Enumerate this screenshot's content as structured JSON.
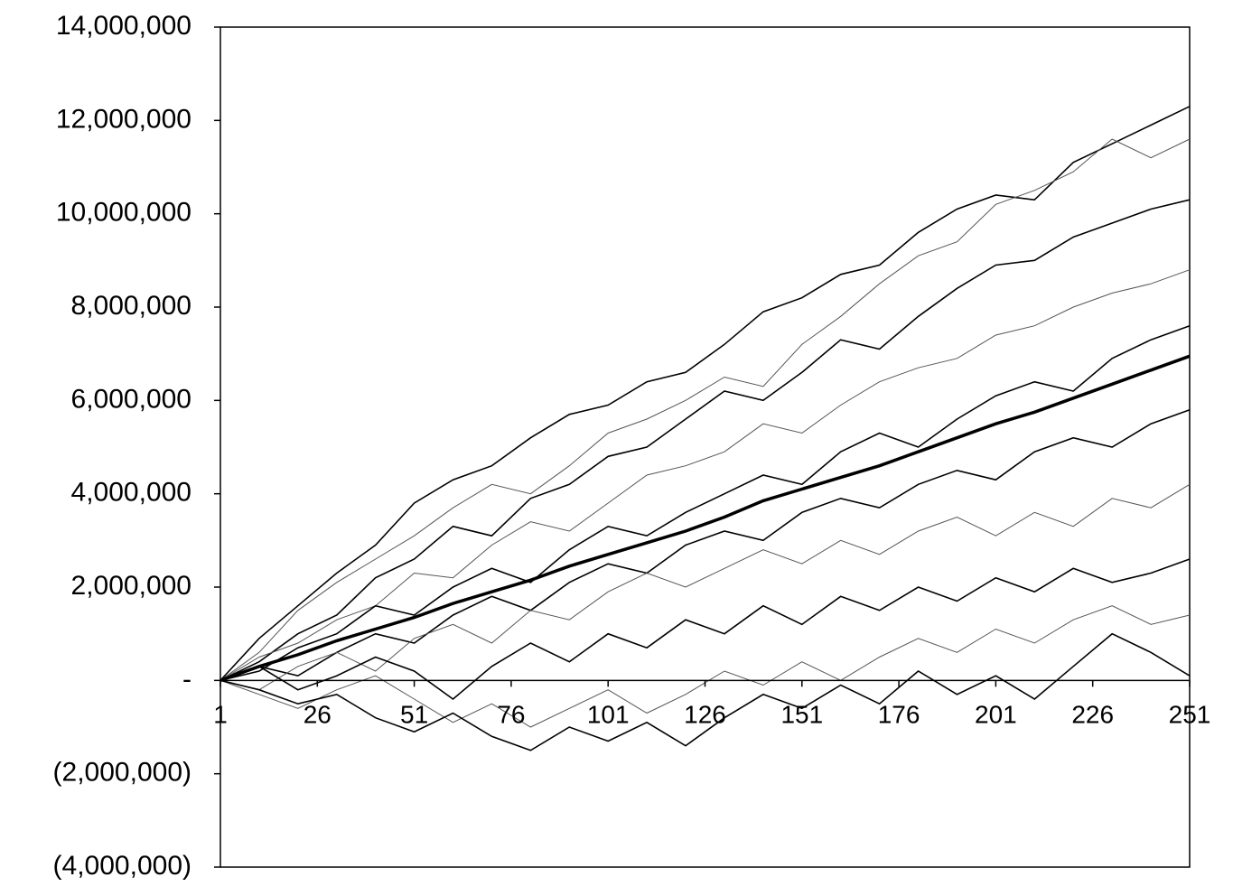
{
  "chart_data": {
    "type": "line",
    "x": [
      1,
      11,
      21,
      31,
      41,
      51,
      61,
      71,
      81,
      91,
      101,
      111,
      121,
      131,
      141,
      151,
      161,
      171,
      181,
      191,
      201,
      211,
      221,
      231,
      241,
      251
    ],
    "xlim": [
      1,
      251
    ],
    "xticks": [
      1,
      26,
      51,
      76,
      101,
      126,
      151,
      176,
      201,
      226,
      251
    ],
    "ylim": [
      -4000000,
      14000000
    ],
    "yticks": [
      {
        "value": -4000000,
        "label": "(4,000,000)"
      },
      {
        "value": -2000000,
        "label": "(2,000,000)"
      },
      {
        "value": 0,
        "label": "-"
      },
      {
        "value": 2000000,
        "label": "2,000,000"
      },
      {
        "value": 4000000,
        "label": "4,000,000"
      },
      {
        "value": 6000000,
        "label": "6,000,000"
      },
      {
        "value": 8000000,
        "label": "8,000,000"
      },
      {
        "value": 10000000,
        "label": "10,000,000"
      },
      {
        "value": 12000000,
        "label": "12,000,000"
      },
      {
        "value": 14000000,
        "label": "14,000,000"
      }
    ],
    "series": [
      {
        "color": "#000000",
        "line_width": 1.6,
        "values": [
          0,
          900000,
          1600000,
          2300000,
          2900000,
          3800000,
          4300000,
          4600000,
          5200000,
          5700000,
          5900000,
          6400000,
          6600000,
          7200000,
          7900000,
          8200000,
          8700000,
          8900000,
          9600000,
          10100000,
          10400000,
          10300000,
          11100000,
          11500000,
          11900000,
          12300000
        ]
      },
      {
        "color": "#555555",
        "line_width": 1,
        "values": [
          0,
          600000,
          1500000,
          2100000,
          2600000,
          3100000,
          3700000,
          4200000,
          4000000,
          4600000,
          5300000,
          5600000,
          6000000,
          6500000,
          6300000,
          7200000,
          7800000,
          8500000,
          9100000,
          9400000,
          10200000,
          10500000,
          10900000,
          11600000,
          11200000,
          11600000
        ]
      },
      {
        "color": "#000000",
        "line_width": 1.6,
        "values": [
          0,
          400000,
          1000000,
          1400000,
          2200000,
          2600000,
          3300000,
          3100000,
          3900000,
          4200000,
          4800000,
          5000000,
          5600000,
          6200000,
          6000000,
          6600000,
          7300000,
          7100000,
          7800000,
          8400000,
          8900000,
          9000000,
          9500000,
          9800000,
          10100000,
          10300000
        ]
      },
      {
        "color": "#555555",
        "line_width": 1,
        "values": [
          0,
          500000,
          800000,
          1300000,
          1600000,
          2300000,
          2200000,
          2900000,
          3400000,
          3200000,
          3800000,
          4400000,
          4600000,
          4900000,
          5500000,
          5300000,
          5900000,
          6400000,
          6700000,
          6900000,
          7400000,
          7600000,
          8000000,
          8300000,
          8500000,
          8800000
        ]
      },
      {
        "color": "#000000",
        "line_width": 1.6,
        "values": [
          0,
          200000,
          700000,
          1000000,
          1600000,
          1400000,
          2000000,
          2400000,
          2100000,
          2800000,
          3300000,
          3100000,
          3600000,
          4000000,
          4400000,
          4200000,
          4900000,
          5300000,
          5000000,
          5600000,
          6100000,
          6400000,
          6200000,
          6900000,
          7300000,
          7600000
        ]
      },
      {
        "color": "#000000",
        "line_width": 1.6,
        "values": [
          0,
          300000,
          100000,
          600000,
          1000000,
          800000,
          1400000,
          1800000,
          1500000,
          2100000,
          2500000,
          2300000,
          2900000,
          3200000,
          3000000,
          3600000,
          3900000,
          3700000,
          4200000,
          4500000,
          4300000,
          4900000,
          5200000,
          5000000,
          5500000,
          5800000
        ]
      },
      {
        "color": "#555555",
        "line_width": 1,
        "values": [
          0,
          -200000,
          300000,
          600000,
          200000,
          900000,
          1200000,
          800000,
          1500000,
          1300000,
          1900000,
          2300000,
          2000000,
          2400000,
          2800000,
          2500000,
          3000000,
          2700000,
          3200000,
          3500000,
          3100000,
          3600000,
          3300000,
          3900000,
          3700000,
          4200000
        ]
      },
      {
        "color": "#000000",
        "line_width": 1.6,
        "values": [
          0,
          300000,
          -200000,
          100000,
          500000,
          200000,
          -400000,
          300000,
          800000,
          400000,
          1000000,
          700000,
          1300000,
          1000000,
          1600000,
          1200000,
          1800000,
          1500000,
          2000000,
          1700000,
          2200000,
          1900000,
          2400000,
          2100000,
          2300000,
          2600000
        ]
      },
      {
        "color": "#555555",
        "line_width": 1,
        "values": [
          0,
          -300000,
          -600000,
          -200000,
          100000,
          -400000,
          -900000,
          -500000,
          -1000000,
          -600000,
          -200000,
          -700000,
          -300000,
          200000,
          -100000,
          400000,
          0,
          500000,
          900000,
          600000,
          1100000,
          800000,
          1300000,
          1600000,
          1200000,
          1400000
        ]
      },
      {
        "color": "#000000",
        "line_width": 1.6,
        "values": [
          0,
          -200000,
          -500000,
          -300000,
          -800000,
          -1100000,
          -700000,
          -1200000,
          -1500000,
          -1000000,
          -1300000,
          -900000,
          -1400000,
          -800000,
          -300000,
          -600000,
          -100000,
          -500000,
          200000,
          -300000,
          100000,
          -400000,
          300000,
          1000000,
          600000,
          100000
        ]
      },
      {
        "color": "#000000",
        "line_width": 3.5,
        "values": [
          0,
          300000,
          550000,
          850000,
          1100000,
          1350000,
          1650000,
          1900000,
          2150000,
          2450000,
          2700000,
          2950000,
          3200000,
          3500000,
          3850000,
          4100000,
          4350000,
          4600000,
          4900000,
          5200000,
          5500000,
          5750000,
          6050000,
          6350000,
          6650000,
          6950000
        ]
      }
    ]
  }
}
